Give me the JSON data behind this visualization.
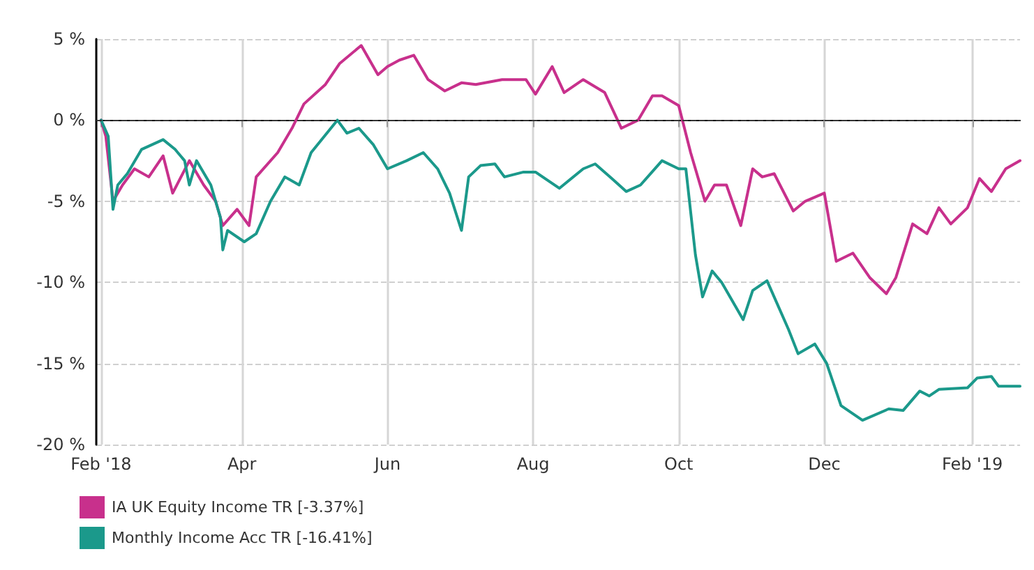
{
  "chart_data": {
    "type": "line",
    "xlim": [
      "2018-01-30",
      "2019-02-21"
    ],
    "xticks": [
      {
        "value": "2018-02-01",
        "label": "Feb '18"
      },
      {
        "value": "2018-04-01",
        "label": "Apr"
      },
      {
        "value": "2018-06-01",
        "label": "Jun"
      },
      {
        "value": "2018-08-01",
        "label": "Aug"
      },
      {
        "value": "2018-10-01",
        "label": "Oct"
      },
      {
        "value": "2018-12-01",
        "label": "Dec"
      },
      {
        "value": "2019-02-01",
        "label": "Feb '19"
      }
    ],
    "ylim": [
      -20,
      5
    ],
    "yticks": [
      {
        "value": -20,
        "label": "-20 %"
      },
      {
        "value": -15,
        "label": "-15 %"
      },
      {
        "value": -10,
        "label": "-10 %"
      },
      {
        "value": -5,
        "label": "-5 %"
      },
      {
        "value": 0,
        "label": "0 %"
      },
      {
        "value": 5,
        "label": "5 %"
      }
    ],
    "grid": true,
    "legend": "bottom left",
    "marker": "none",
    "line_style": "solid",
    "ref_lines": [
      {
        "axis": "y",
        "value": 0,
        "color": "#333333",
        "line_style": "dashed"
      }
    ],
    "series": [
      {
        "name": "IA UK Equity Income TR [-3.37%]",
        "color": "#c8308c",
        "x": [
          "2018-02-01",
          "2018-02-03",
          "2018-02-06",
          "2018-02-10",
          "2018-02-15",
          "2018-02-21",
          "2018-02-27",
          "2018-03-03",
          "2018-03-10",
          "2018-03-16",
          "2018-03-21",
          "2018-03-24",
          "2018-03-30",
          "2018-04-04",
          "2018-04-07",
          "2018-04-16",
          "2018-04-22",
          "2018-04-27",
          "2018-05-06",
          "2018-05-12",
          "2018-05-21",
          "2018-05-28",
          "2018-06-01",
          "2018-06-06",
          "2018-06-12",
          "2018-06-18",
          "2018-06-25",
          "2018-07-02",
          "2018-07-08",
          "2018-07-19",
          "2018-07-29",
          "2018-08-02",
          "2018-08-09",
          "2018-08-14",
          "2018-08-22",
          "2018-08-31",
          "2018-09-07",
          "2018-09-14",
          "2018-09-20",
          "2018-09-24",
          "2018-10-01",
          "2018-10-06",
          "2018-10-12",
          "2018-10-16",
          "2018-10-21",
          "2018-10-27",
          "2018-11-01",
          "2018-11-05",
          "2018-11-10",
          "2018-11-18",
          "2018-11-23",
          "2018-12-01",
          "2018-12-06",
          "2018-12-13",
          "2018-12-20",
          "2018-12-27",
          "2018-12-31",
          "2019-01-07",
          "2019-01-13",
          "2019-01-18",
          "2019-01-23",
          "2019-01-30",
          "2019-02-04",
          "2019-02-09",
          "2019-02-15",
          "2019-02-21"
        ],
        "values": [
          0,
          -1,
          -5,
          -4,
          -3,
          -3.5,
          -2.2,
          -4.5,
          -2.5,
          -4,
          -5,
          -6.5,
          -5.5,
          -6.5,
          -3.5,
          -2,
          -0.5,
          1,
          2.2,
          3.5,
          4.6,
          2.8,
          3.3,
          3.7,
          4,
          2.5,
          1.8,
          2.3,
          2.2,
          2.5,
          2.5,
          1.6,
          3.3,
          1.7,
          2.5,
          1.7,
          -0.5,
          0,
          1.5,
          1.5,
          0.9,
          -2,
          -5,
          -4,
          -4,
          -6.5,
          -3,
          -3.5,
          -3.3,
          -5.6,
          -5,
          -4.5,
          -8.7,
          -8.2,
          -9.7,
          -10.7,
          -9.7,
          -6.4,
          -7,
          -5.4,
          -6.4,
          -5.4,
          -3.6,
          -4.4,
          -3,
          -2.5
        ]
      },
      {
        "name": "Monthly Income Acc TR [-16.41%]",
        "color": "#1b998b",
        "x": [
          "2018-02-01",
          "2018-02-04",
          "2018-02-06",
          "2018-02-08",
          "2018-02-12",
          "2018-02-18",
          "2018-02-27",
          "2018-03-04",
          "2018-03-08",
          "2018-03-10",
          "2018-03-13",
          "2018-03-19",
          "2018-03-23",
          "2018-03-24",
          "2018-03-26",
          "2018-04-02",
          "2018-04-07",
          "2018-04-13",
          "2018-04-19",
          "2018-04-25",
          "2018-04-30",
          "2018-05-11",
          "2018-05-15",
          "2018-05-20",
          "2018-05-26",
          "2018-06-01",
          "2018-06-09",
          "2018-06-16",
          "2018-06-22",
          "2018-06-27",
          "2018-07-02",
          "2018-07-05",
          "2018-07-10",
          "2018-07-16",
          "2018-07-20",
          "2018-07-28",
          "2018-08-02",
          "2018-08-12",
          "2018-08-22",
          "2018-08-27",
          "2018-09-03",
          "2018-09-09",
          "2018-09-15",
          "2018-09-24",
          "2018-10-01",
          "2018-10-04",
          "2018-10-08",
          "2018-10-11",
          "2018-10-15",
          "2018-10-19",
          "2018-10-28",
          "2018-11-01",
          "2018-11-07",
          "2018-11-16",
          "2018-11-20",
          "2018-11-27",
          "2018-12-02",
          "2018-12-08",
          "2018-12-17",
          "2018-12-28",
          "2019-01-03",
          "2019-01-10",
          "2019-01-14",
          "2019-01-18",
          "2019-01-30",
          "2019-02-03",
          "2019-02-09",
          "2019-02-12",
          "2019-02-21"
        ],
        "values": [
          0,
          -1,
          -5.5,
          -4,
          -3.3,
          -1.8,
          -1.2,
          -1.8,
          -2.5,
          -4,
          -2.5,
          -4,
          -6,
          -8,
          -6.8,
          -7.5,
          -7,
          -5,
          -3.5,
          -4,
          -2,
          0,
          -0.8,
          -0.5,
          -1.5,
          -3,
          -2.5,
          -2,
          -3,
          -4.5,
          -6.8,
          -3.5,
          -2.8,
          -2.7,
          -3.5,
          -3.2,
          -3.2,
          -4.2,
          -3,
          -2.7,
          -3.6,
          -4.4,
          -4,
          -2.5,
          -3,
          -3,
          -8.3,
          -10.9,
          -9.3,
          -10,
          -12.3,
          -10.5,
          -9.9,
          -12.9,
          -14.4,
          -13.8,
          -15,
          -17.6,
          -18.5,
          -17.8,
          -17.9,
          -16.7,
          -17,
          -16.6,
          -16.5,
          -15.9,
          -15.8,
          -16.4,
          -16.4
        ]
      }
    ]
  }
}
